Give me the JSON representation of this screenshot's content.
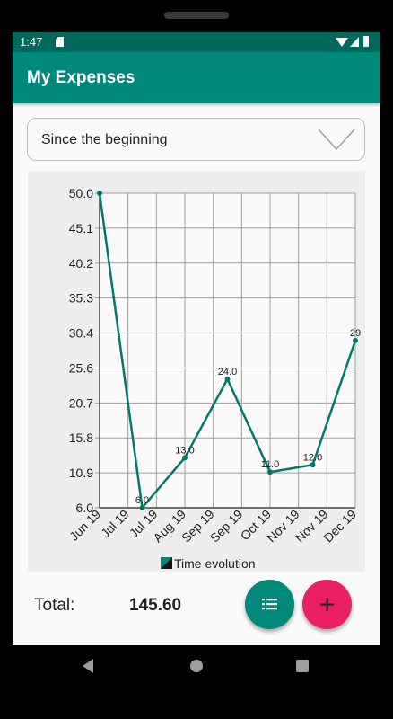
{
  "status_bar": {
    "time": "1:47",
    "icons": [
      "sd-card-icon",
      "wifi-icon",
      "signal-icon",
      "battery-icon"
    ]
  },
  "app_bar": {
    "title": "My Expenses"
  },
  "period_spinner": {
    "selected": "Since the beginning"
  },
  "summary": {
    "total_label": "Total:",
    "total_value": "145.60"
  },
  "fabs": {
    "list_icon": "list-icon",
    "add_icon": "plus-icon"
  },
  "nav_bar": {
    "icons": [
      "back-icon",
      "home-icon",
      "recents-icon"
    ]
  },
  "colors": {
    "primary": "#00897b",
    "primary_dark": "#00695c",
    "accent": "#e91e63",
    "line": "#00796b",
    "chart_bg": "#eeeeee",
    "grid": "#9e9e9e"
  },
  "chart_data": {
    "type": "line",
    "title": "",
    "xlabel": "",
    "ylabel": "",
    "x": [
      "Jun 19",
      "Jul 19",
      "Jul 19",
      "Aug 19",
      "Sep 19",
      "Sep 19",
      "Oct 19",
      "Nov 19",
      "Nov 19",
      "Dec 19"
    ],
    "y_ticks": [
      "50.0",
      "45.1",
      "40.2",
      "35.3",
      "30.4",
      "25.6",
      "20.7",
      "15.8",
      "10.9",
      "6.0"
    ],
    "ylim": [
      6.0,
      50.0
    ],
    "grid": true,
    "legend": "bottom",
    "series": [
      {
        "name": "Time evolution",
        "points": [
          {
            "x": 0,
            "y": 50.0,
            "label": ""
          },
          {
            "x": 1.5,
            "y": 6.0,
            "label": "6.0"
          },
          {
            "x": 3,
            "y": 13.0,
            "label": "13.0"
          },
          {
            "x": 4.5,
            "y": 24.0,
            "label": "24.0"
          },
          {
            "x": 6,
            "y": 11.0,
            "label": "11.0"
          },
          {
            "x": 7.5,
            "y": 12.0,
            "label": "12.0"
          },
          {
            "x": 9,
            "y": 29.4,
            "label": "29"
          }
        ]
      }
    ]
  }
}
